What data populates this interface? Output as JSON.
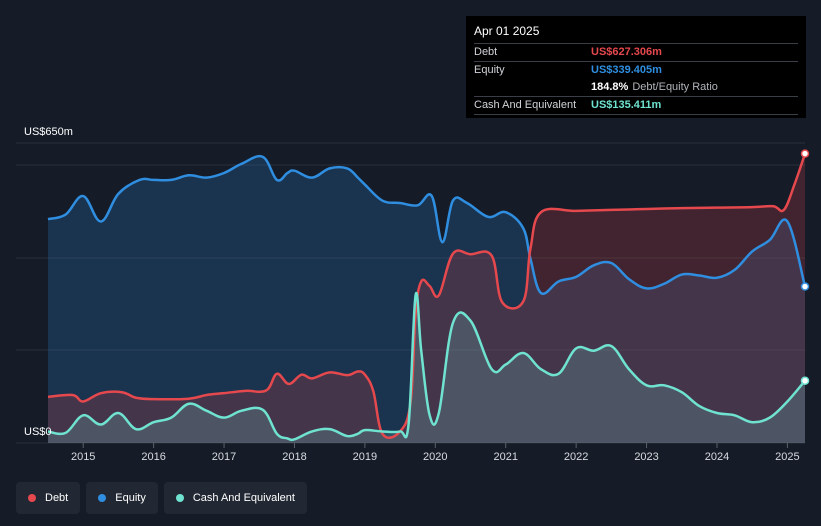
{
  "tooltip": {
    "date": "Apr 01 2025",
    "debt_label": "Debt",
    "debt_value": "US$627.306m",
    "equity_label": "Equity",
    "equity_value": "US$339.405m",
    "ratio_value": "184.8%",
    "ratio_label": "Debt/Equity Ratio",
    "cash_label": "Cash And Equivalent",
    "cash_value": "US$135.411m"
  },
  "legend": {
    "debt": "Debt",
    "equity": "Equity",
    "cash": "Cash And Equivalent"
  },
  "colors": {
    "background": "#151b27",
    "debt": "#e5484d",
    "equity": "#2f8ee0",
    "cash": "#6fe3d0",
    "tooltip_bg": "#000000"
  },
  "chart_data": {
    "type": "area",
    "title": "",
    "xlabel": "",
    "ylabel": "",
    "y_top_label": "US$650m",
    "y_bottom_label": "US$0",
    "ylim": [
      0,
      650
    ],
    "xlim": [
      2014.5,
      2025.25
    ],
    "x_ticks": [
      "2015",
      "2016",
      "2017",
      "2018",
      "2019",
      "2020",
      "2021",
      "2022",
      "2023",
      "2024",
      "2025"
    ],
    "grid": true,
    "legend_position": "bottom-left",
    "series": [
      {
        "name": "Debt",
        "x": [
          2014.5,
          2014.85,
          2015.0,
          2015.25,
          2015.55,
          2015.75,
          2016.0,
          2016.5,
          2016.75,
          2017.0,
          2017.3,
          2017.6,
          2017.75,
          2017.92,
          2018.1,
          2018.25,
          2018.5,
          2018.75,
          2018.9,
          2019.0,
          2019.12,
          2019.25,
          2019.5,
          2019.65,
          2019.72,
          2019.8,
          2019.92,
          2020.05,
          2020.25,
          2020.5,
          2020.8,
          2020.95,
          2021.25,
          2021.35,
          2021.5,
          2022.0,
          2022.5,
          2023.0,
          2023.5,
          2024.0,
          2024.5,
          2024.8,
          2024.95,
          2025.1,
          2025.25
        ],
        "values": [
          100,
          104,
          90,
          108,
          110,
          98,
          95,
          96,
          104,
          108,
          113,
          114,
          150,
          128,
          148,
          140,
          153,
          147,
          155,
          148,
          112,
          20,
          25,
          90,
          280,
          350,
          340,
          320,
          410,
          409,
          406,
          305,
          307,
          420,
          500,
          503,
          505,
          507,
          509,
          510,
          511,
          513,
          505,
          560,
          627
        ]
      },
      {
        "name": "Equity",
        "x": [
          2014.5,
          2014.75,
          2015.0,
          2015.25,
          2015.5,
          2015.8,
          2016.0,
          2016.25,
          2016.5,
          2016.75,
          2017.0,
          2017.25,
          2017.55,
          2017.75,
          2017.9,
          2018.0,
          2018.25,
          2018.5,
          2018.75,
          2018.9,
          2019.0,
          2019.25,
          2019.5,
          2019.75,
          2019.95,
          2020.1,
          2020.25,
          2020.45,
          2020.75,
          2021.0,
          2021.25,
          2021.35,
          2021.5,
          2021.75,
          2022.0,
          2022.25,
          2022.5,
          2022.75,
          2023.0,
          2023.25,
          2023.5,
          2023.75,
          2024.0,
          2024.25,
          2024.5,
          2024.75,
          2025.0,
          2025.25
        ],
        "values": [
          485,
          495,
          535,
          480,
          540,
          570,
          570,
          570,
          580,
          575,
          585,
          605,
          620,
          570,
          585,
          590,
          575,
          595,
          595,
          575,
          560,
          525,
          520,
          515,
          535,
          435,
          525,
          520,
          490,
          500,
          465,
          400,
          325,
          350,
          360,
          385,
          390,
          355,
          335,
          345,
          365,
          363,
          358,
          375,
          415,
          440,
          480,
          339
        ]
      },
      {
        "name": "Cash And Equivalent",
        "x": [
          2014.5,
          2014.75,
          2015.0,
          2015.25,
          2015.5,
          2015.75,
          2016.0,
          2016.25,
          2016.5,
          2016.75,
          2017.0,
          2017.25,
          2017.55,
          2017.75,
          2017.9,
          2018.0,
          2018.25,
          2018.5,
          2018.75,
          2018.9,
          2019.0,
          2019.25,
          2019.5,
          2019.62,
          2019.72,
          2019.8,
          2019.92,
          2020.05,
          2020.25,
          2020.5,
          2020.8,
          2021.0,
          2021.25,
          2021.5,
          2021.75,
          2022.0,
          2022.25,
          2022.5,
          2022.75,
          2023.0,
          2023.25,
          2023.5,
          2023.75,
          2024.0,
          2024.25,
          2024.5,
          2024.75,
          2025.0,
          2025.25
        ],
        "values": [
          25,
          22,
          60,
          40,
          65,
          30,
          45,
          55,
          85,
          70,
          55,
          70,
          72,
          20,
          10,
          8,
          25,
          30,
          15,
          20,
          28,
          25,
          25,
          40,
          320,
          200,
          60,
          65,
          260,
          265,
          160,
          170,
          195,
          160,
          150,
          205,
          200,
          210,
          160,
          125,
          125,
          110,
          80,
          65,
          60,
          45,
          55,
          90,
          135
        ]
      }
    ]
  }
}
